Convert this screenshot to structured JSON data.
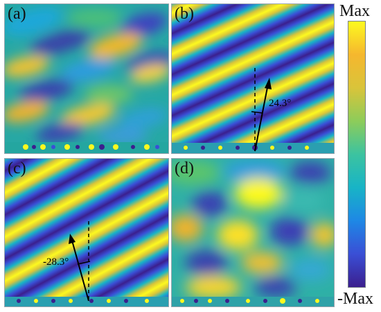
{
  "panels": [
    {
      "id": "a",
      "label": "(a)"
    },
    {
      "id": "b",
      "label": "(b)",
      "angle": "24.3°"
    },
    {
      "id": "c",
      "label": "(c)",
      "angle": "-28.3°"
    },
    {
      "id": "d",
      "label": "(d)"
    }
  ],
  "colorbar": {
    "max_label": "Max",
    "min_label": "-Max",
    "colors": [
      "#3b1f8e",
      "#3a4fd6",
      "#1e88e5",
      "#18b4c6",
      "#3cc3a0",
      "#8dcc5a",
      "#d9c43a",
      "#f5b72e",
      "#fdf91f"
    ]
  }
}
